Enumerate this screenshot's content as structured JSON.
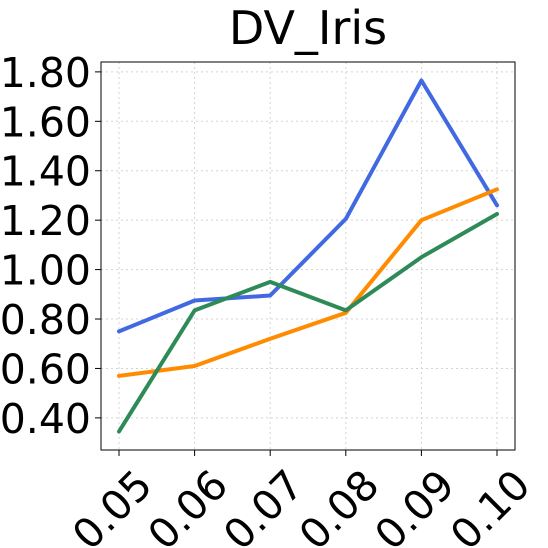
{
  "chart_data": {
    "type": "line",
    "title": "DV_Iris",
    "xlabel": "",
    "ylabel": "",
    "x": [
      "0.05",
      "0.06",
      "0.07",
      "0.08",
      "0.09",
      "0.10"
    ],
    "ylim": [
      0.27,
      1.84
    ],
    "yticks": [
      "0.40",
      "0.60",
      "0.80",
      "1.00",
      "1.20",
      "1.40",
      "1.60",
      "1.80"
    ],
    "grid": true,
    "series": [
      {
        "color": "#4169e1",
        "values": [
          0.75,
          0.875,
          0.895,
          1.205,
          1.765,
          1.26
        ]
      },
      {
        "color": "#ff8c00",
        "values": [
          0.57,
          0.61,
          0.72,
          0.825,
          1.2,
          1.325
        ]
      },
      {
        "color": "#2e8b57",
        "values": [
          0.345,
          0.835,
          0.95,
          0.835,
          1.05,
          1.225
        ]
      }
    ]
  }
}
